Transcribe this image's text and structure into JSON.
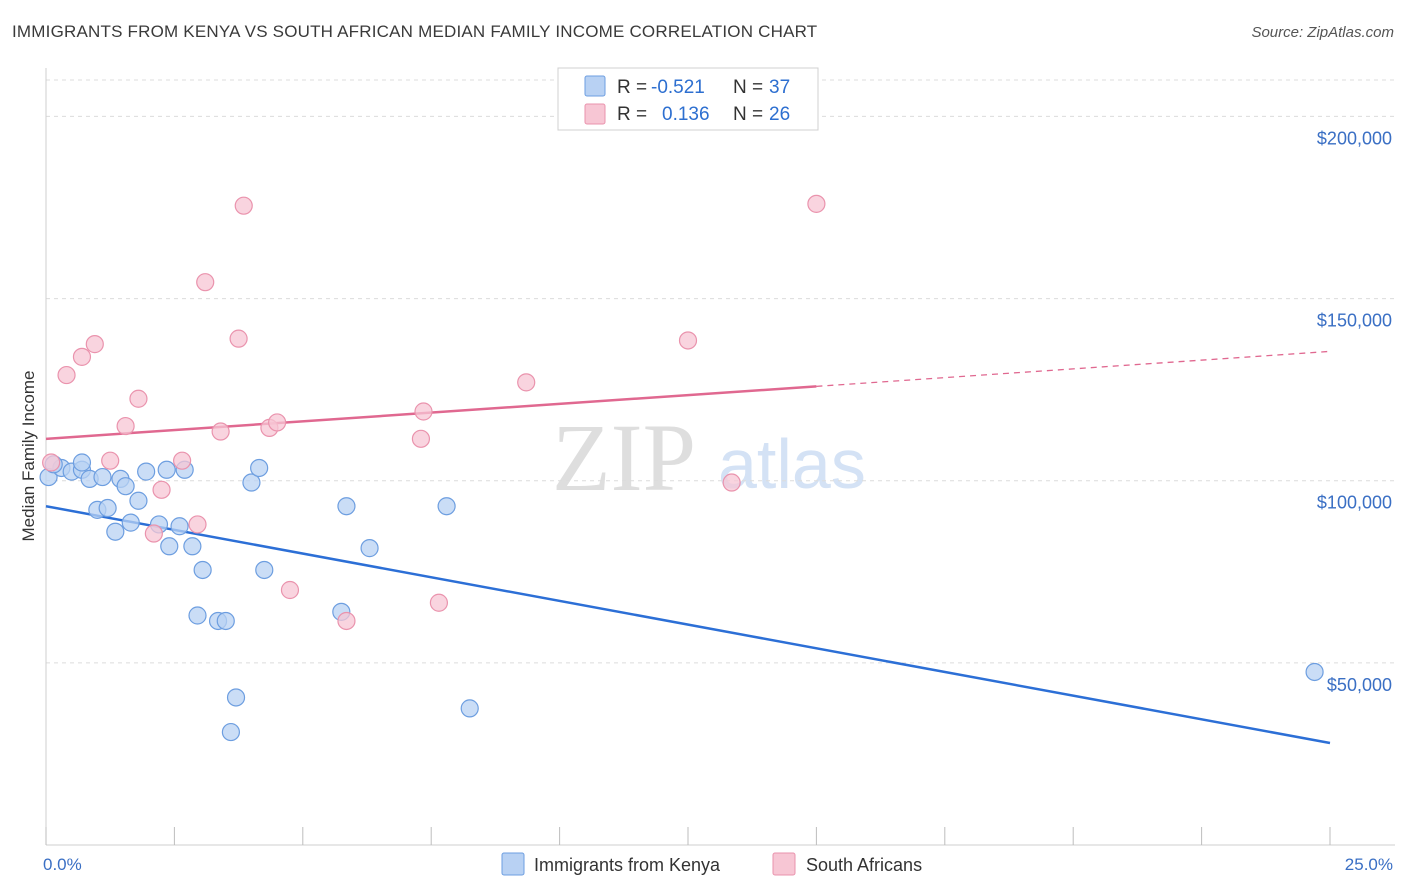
{
  "title": "IMMIGRANTS FROM KENYA VS SOUTH AFRICAN MEDIAN FAMILY INCOME CORRELATION CHART",
  "source": "Source: ZipAtlas.com",
  "watermark": {
    "zip": "ZIP",
    "atlas": "atlas"
  },
  "colors": {
    "blue_fill": "#b8d1f3",
    "blue_stroke": "#6d9ee0",
    "blue_line": "#2c6fd6",
    "pink_fill": "#f7c6d4",
    "pink_stroke": "#ea93ad",
    "pink_line": "#e06890",
    "grid": "#dcdcdc",
    "axis_label": "#3a6fc4"
  },
  "legend": {
    "rows": [
      {
        "r_label": "R =",
        "r_value": "-0.521",
        "n_label": "N =",
        "n_value": "37"
      },
      {
        "r_label": "R =",
        "r_value": "0.136",
        "n_label": "N =",
        "n_value": "26"
      }
    ]
  },
  "chart_data": {
    "type": "scatter",
    "title": "IMMIGRANTS FROM KENYA VS SOUTH AFRICAN MEDIAN FAMILY INCOME CORRELATION CHART",
    "ylabel": "Median Family Income",
    "xlabel": "",
    "xlim": [
      0,
      25
    ],
    "ylim": [
      0,
      210000
    ],
    "x_tick_labels": [
      "0.0%",
      "25.0%"
    ],
    "y_ticks": [
      50000,
      100000,
      150000,
      200000
    ],
    "y_tick_labels": [
      "$50,000",
      "$100,000",
      "$150,000",
      "$200,000"
    ],
    "grid": true,
    "legend_position": "bottom-center",
    "series": [
      {
        "name": "Immigrants from Kenya",
        "r": -0.521,
        "n": 37,
        "trend": {
          "x": [
            0,
            25
          ],
          "y": [
            93000,
            28000
          ],
          "dashed_from": null
        },
        "points": [
          [
            0.05,
            101000
          ],
          [
            0.3,
            103500
          ],
          [
            0.5,
            102500
          ],
          [
            0.7,
            103000
          ],
          [
            0.7,
            105000
          ],
          [
            0.85,
            100500
          ],
          [
            1.0,
            92000
          ],
          [
            1.1,
            101000
          ],
          [
            1.2,
            92500
          ],
          [
            1.35,
            86000
          ],
          [
            1.45,
            100500
          ],
          [
            1.55,
            98500
          ],
          [
            1.65,
            88500
          ],
          [
            1.8,
            94500
          ],
          [
            1.95,
            102500
          ],
          [
            2.2,
            88000
          ],
          [
            2.35,
            103000
          ],
          [
            2.4,
            82000
          ],
          [
            2.6,
            87500
          ],
          [
            2.7,
            103000
          ],
          [
            2.85,
            82000
          ],
          [
            2.95,
            63000
          ],
          [
            3.05,
            75500
          ],
          [
            3.35,
            61500
          ],
          [
            3.5,
            61500
          ],
          [
            3.6,
            31000
          ],
          [
            3.7,
            40500
          ],
          [
            4.0,
            99500
          ],
          [
            4.15,
            103500
          ],
          [
            4.25,
            75500
          ],
          [
            5.75,
            64000
          ],
          [
            5.85,
            93000
          ],
          [
            6.3,
            81500
          ],
          [
            7.8,
            93000
          ],
          [
            8.25,
            37500
          ],
          [
            24.7,
            47500
          ],
          [
            0.15,
            104500
          ]
        ]
      },
      {
        "name": "South Africans",
        "r": 0.136,
        "n": 26,
        "trend": {
          "x": [
            0,
            25
          ],
          "y": [
            111500,
            135500
          ],
          "dashed_from": 15
        },
        "points": [
          [
            0.1,
            105000
          ],
          [
            0.4,
            129000
          ],
          [
            0.7,
            134000
          ],
          [
            0.95,
            137500
          ],
          [
            1.25,
            105500
          ],
          [
            1.55,
            115000
          ],
          [
            1.8,
            122500
          ],
          [
            2.1,
            85500
          ],
          [
            2.25,
            97500
          ],
          [
            2.65,
            105500
          ],
          [
            2.95,
            88000
          ],
          [
            3.1,
            154500
          ],
          [
            3.4,
            113500
          ],
          [
            3.75,
            139000
          ],
          [
            3.85,
            175500
          ],
          [
            4.35,
            114500
          ],
          [
            4.5,
            116000
          ],
          [
            4.75,
            70000
          ],
          [
            5.85,
            61500
          ],
          [
            7.3,
            111500
          ],
          [
            7.35,
            119000
          ],
          [
            7.65,
            66500
          ],
          [
            9.35,
            127000
          ],
          [
            12.5,
            138500
          ],
          [
            13.35,
            99500
          ],
          [
            15.0,
            176000
          ]
        ]
      }
    ]
  }
}
